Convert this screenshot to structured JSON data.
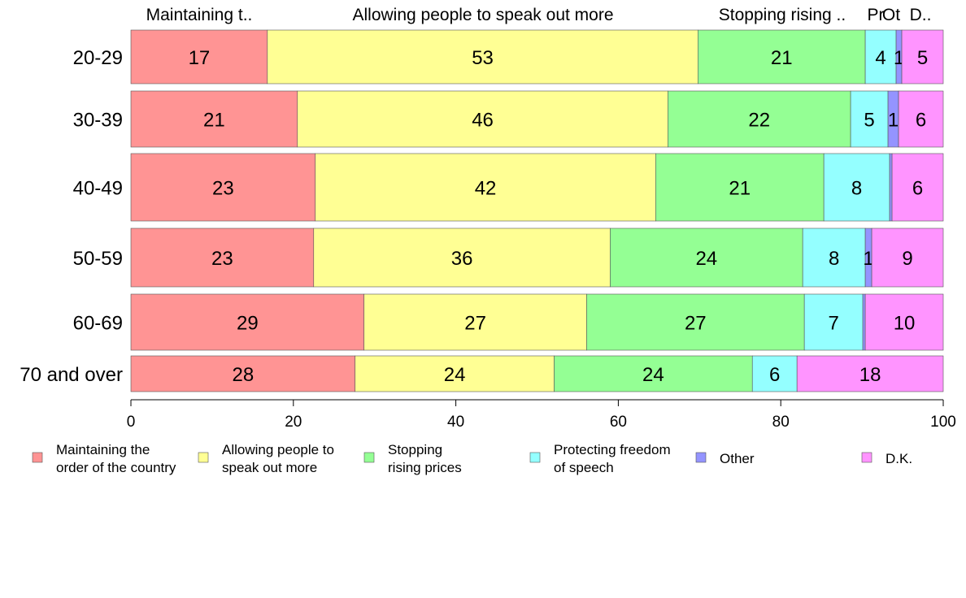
{
  "chart_data": {
    "type": "bar",
    "orientation": "horizontal",
    "stacked": true,
    "categories": [
      "20-29",
      "30-39",
      "40-49",
      "50-59",
      "60-69",
      "70 and over"
    ],
    "series": [
      {
        "name": "Maintaining the order of the country",
        "legend_lines": [
          "Maintaining the",
          "order of the country"
        ],
        "top_label": "Maintaining t..",
        "color": "#ff9494",
        "values": [
          16.8,
          20.5,
          22.7,
          22.5,
          28.7,
          27.6
        ],
        "labels": [
          "17",
          "21",
          "23",
          "23",
          "29",
          "28"
        ]
      },
      {
        "name": "Allowing people to speak out more",
        "legend_lines": [
          "Allowing people to",
          "speak out more"
        ],
        "top_label": "Allowing people to speak out more",
        "color": "#ffff94",
        "values": [
          53.0,
          45.6,
          41.9,
          36.5,
          27.4,
          24.5
        ],
        "labels": [
          "53",
          "46",
          "42",
          "36",
          "27",
          "24"
        ]
      },
      {
        "name": "Stopping rising prices",
        "legend_lines": [
          "Stopping",
          "rising prices"
        ],
        "top_label": "Stopping rising ..",
        "color": "#94ff94",
        "values": [
          20.6,
          22.5,
          20.7,
          23.7,
          26.8,
          24.4
        ],
        "labels": [
          "21",
          "22",
          "21",
          "24",
          "27",
          "24"
        ]
      },
      {
        "name": "Protecting freedom of speech",
        "legend_lines": [
          "Protecting freedom",
          "of speech"
        ],
        "top_label": "Pr",
        "color": "#94ffff",
        "values": [
          3.8,
          4.6,
          8.1,
          7.7,
          7.2,
          5.5
        ],
        "labels": [
          "4",
          "5",
          "8",
          "8",
          "7",
          "6"
        ]
      },
      {
        "name": "Other",
        "legend_lines": [
          "Other"
        ],
        "top_label": "Ot",
        "color": "#9494ff",
        "values": [
          0.7,
          1.3,
          0.3,
          0.8,
          0.3,
          0.0
        ],
        "labels": [
          "1",
          "1",
          "",
          "1",
          "",
          ""
        ]
      },
      {
        "name": "D.K.",
        "legend_lines": [
          "D.K."
        ],
        "top_label": "D..",
        "color": "#ff94ff",
        "values": [
          5.1,
          5.5,
          6.3,
          8.8,
          9.6,
          18.0
        ],
        "labels": [
          "5",
          "6",
          "6",
          "9",
          "10",
          "18"
        ]
      }
    ],
    "xlim": [
      0,
      100
    ],
    "xticks": [
      "0",
      "20",
      "40",
      "60",
      "80",
      "100"
    ],
    "xlabel": "",
    "ylabel": "",
    "title": "",
    "legend_position": "bottom"
  }
}
